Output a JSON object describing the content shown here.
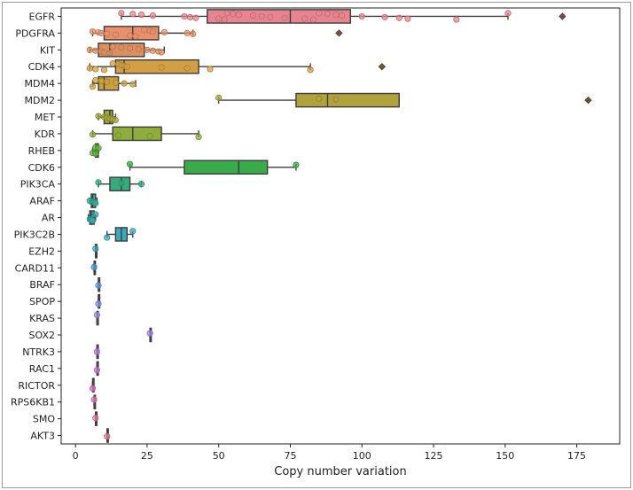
{
  "chart_data": {
    "type": "boxplot",
    "orientation": "horizontal",
    "title": "",
    "xlabel": "Copy number variation",
    "ylabel": "",
    "xlim": [
      -5,
      190
    ],
    "xticks": [
      0,
      25,
      50,
      75,
      100,
      125,
      150,
      175
    ],
    "grid": false,
    "series": [
      {
        "name": "EGFR",
        "color": "#e8848f",
        "min": 16,
        "q1": 46,
        "median": 75,
        "q3": 96,
        "max": 151,
        "outliers": [
          170
        ],
        "points": [
          16,
          20,
          23,
          27,
          38,
          40,
          42,
          50,
          52,
          53,
          55,
          57,
          62,
          65,
          68,
          73,
          80,
          83,
          85,
          88,
          91,
          93,
          100,
          108,
          113,
          116,
          133,
          151
        ]
      },
      {
        "name": "PDGFRA",
        "color": "#e9906a",
        "min": 6,
        "q1": 10,
        "median": 20,
        "q3": 29,
        "max": 41,
        "outliers": [
          92
        ],
        "points": [
          6,
          8,
          9,
          11,
          14,
          19,
          21,
          24,
          26,
          27,
          31,
          39,
          41
        ]
      },
      {
        "name": "KIT",
        "color": "#dc9060",
        "min": 5,
        "q1": 8,
        "median": 12,
        "q3": 24,
        "max": 31,
        "outliers": [],
        "points": [
          5,
          7,
          9,
          10,
          12,
          13,
          16,
          19,
          22,
          25,
          27,
          29,
          30
        ]
      },
      {
        "name": "CDK4",
        "color": "#d39f45",
        "min": 5,
        "q1": 14,
        "median": 17,
        "q3": 43,
        "max": 82,
        "outliers": [
          107
        ],
        "points": [
          5,
          7,
          10,
          13,
          15,
          16,
          17,
          18,
          30,
          39,
          47,
          82
        ]
      },
      {
        "name": "MDM4",
        "color": "#caa03d",
        "min": 6,
        "q1": 8,
        "median": 10,
        "q3": 15,
        "max": 21,
        "outliers": [],
        "points": [
          6,
          7,
          9,
          11,
          14,
          17,
          20
        ]
      },
      {
        "name": "MDM2",
        "color": "#b2a23e",
        "min": 50,
        "q1": 77,
        "median": 88,
        "q3": 113,
        "max": 113,
        "outliers": [
          179
        ],
        "points": [
          50,
          85,
          91
        ]
      },
      {
        "name": "MET",
        "color": "#a2a73a",
        "min": 8,
        "q1": 10,
        "median": 12,
        "q3": 13,
        "max": 14,
        "outliers": [],
        "points": [
          8,
          10,
          11,
          12,
          13,
          14
        ]
      },
      {
        "name": "KDR",
        "color": "#8ead3c",
        "min": 6,
        "q1": 13,
        "median": 20,
        "q3": 30,
        "max": 43,
        "outliers": [],
        "points": [
          6,
          15,
          26,
          43
        ]
      },
      {
        "name": "RHEB",
        "color": "#62b03f",
        "min": 6,
        "q1": 7,
        "median": 7,
        "q3": 8,
        "max": 8,
        "outliers": [],
        "points": [
          6,
          7,
          7,
          8
        ]
      },
      {
        "name": "CDK6",
        "color": "#3aab4a",
        "min": 19,
        "q1": 38,
        "median": 57,
        "q3": 67,
        "max": 77,
        "outliers": [],
        "points": [
          19,
          77
        ]
      },
      {
        "name": "PIK3CA",
        "color": "#36ac7c",
        "min": 8,
        "q1": 12,
        "median": 16,
        "q3": 19,
        "max": 23,
        "outliers": [],
        "points": [
          8,
          16,
          23
        ]
      },
      {
        "name": "ARAF",
        "color": "#35ab96",
        "min": 5,
        "q1": 5.5,
        "median": 6,
        "q3": 7,
        "max": 7.5,
        "outliers": [],
        "points": [
          5,
          6,
          6.5,
          7
        ]
      },
      {
        "name": "AR",
        "color": "#37aaa9",
        "min": 4.5,
        "q1": 5,
        "median": 5.5,
        "q3": 6.5,
        "max": 7,
        "outliers": [],
        "points": [
          5,
          5.5,
          6,
          7
        ]
      },
      {
        "name": "PIK3C2B",
        "color": "#3aa9b8",
        "min": 11,
        "q1": 14,
        "median": 16,
        "q3": 18,
        "max": 20,
        "outliers": [],
        "points": [
          11,
          20
        ]
      },
      {
        "name": "EZH2",
        "color": "#3ea8c8",
        "min": 7,
        "q1": 7,
        "median": 7,
        "q3": 7,
        "max": 7,
        "outliers": [],
        "points": [
          7
        ]
      },
      {
        "name": "CARD11",
        "color": "#48a3d9",
        "min": 6.5,
        "q1": 6.5,
        "median": 6.5,
        "q3": 6.5,
        "max": 6.5,
        "outliers": [],
        "points": [
          6.5
        ]
      },
      {
        "name": "BRAF",
        "color": "#6a9be6",
        "min": 8,
        "q1": 8,
        "median": 8,
        "q3": 8,
        "max": 8,
        "outliers": [],
        "points": [
          8
        ]
      },
      {
        "name": "SPOP",
        "color": "#8a95ec",
        "min": 8,
        "q1": 8,
        "median": 8,
        "q3": 8,
        "max": 8,
        "outliers": [],
        "points": [
          8
        ]
      },
      {
        "name": "KRAS",
        "color": "#9d8eeb",
        "min": 7.5,
        "q1": 7.5,
        "median": 7.5,
        "q3": 7.5,
        "max": 7.5,
        "outliers": [],
        "points": [
          7.5
        ]
      },
      {
        "name": "SOX2",
        "color": "#ad86e8",
        "min": 26,
        "q1": 26,
        "median": 26,
        "q3": 26,
        "max": 26,
        "outliers": [],
        "points": [
          26
        ]
      },
      {
        "name": "NTRK3",
        "color": "#c07fe4",
        "min": 7.5,
        "q1": 7.5,
        "median": 7.5,
        "q3": 7.5,
        "max": 7.5,
        "outliers": [],
        "points": [
          7.5
        ]
      },
      {
        "name": "RAC1",
        "color": "#cf7ad8",
        "min": 7.5,
        "q1": 7.5,
        "median": 7.5,
        "q3": 7.5,
        "max": 7.5,
        "outliers": [],
        "points": [
          7.5
        ]
      },
      {
        "name": "RICTOR",
        "color": "#dc76c6",
        "min": 6,
        "q1": 6,
        "median": 6,
        "q3": 6,
        "max": 6,
        "outliers": [],
        "points": [
          6
        ]
      },
      {
        "name": "RPS6KB1",
        "color": "#e477b4",
        "min": 6.5,
        "q1": 6.5,
        "median": 6.5,
        "q3": 6.5,
        "max": 6.5,
        "outliers": [],
        "points": [
          6.5
        ]
      },
      {
        "name": "SMO",
        "color": "#e87aa2",
        "min": 7,
        "q1": 7,
        "median": 7,
        "q3": 7,
        "max": 7,
        "outliers": [],
        "points": [
          7
        ]
      },
      {
        "name": "AKT3",
        "color": "#ea7e95",
        "min": 11,
        "q1": 11,
        "median": 11,
        "q3": 11,
        "max": 11,
        "outliers": [],
        "points": [
          11
        ]
      }
    ]
  }
}
